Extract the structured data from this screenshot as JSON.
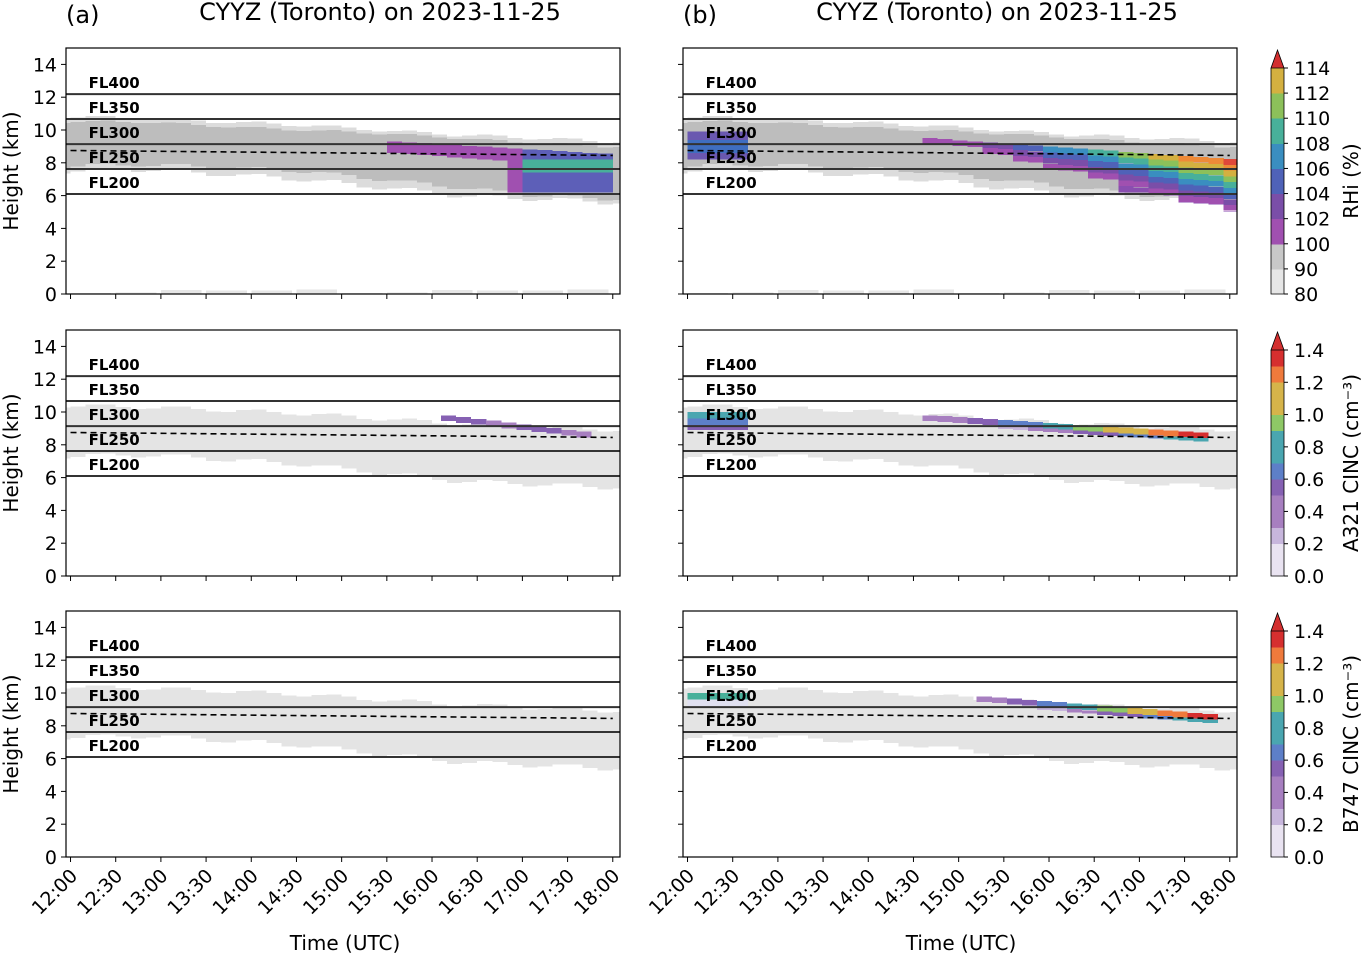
{
  "figure": {
    "panel_tags": [
      "(a)",
      "(b)"
    ],
    "panel_title": "CYYZ (Toronto) on 2023-11-25",
    "xlabel": "Time (UTC)",
    "ylabel": "Height (km)"
  },
  "chart_data": {
    "type": "heatmap",
    "x_ticks": [
      "12:00",
      "12:30",
      "13:00",
      "13:30",
      "14:00",
      "14:30",
      "15:00",
      "15:30",
      "16:00",
      "16:30",
      "17:00",
      "17:30",
      "18:00"
    ],
    "y_ticks": [
      0,
      2,
      4,
      6,
      8,
      10,
      12,
      14
    ],
    "ylim": [
      0,
      15
    ],
    "time_range_hours": [
      11.95,
      18.08
    ],
    "flight_levels": [
      {
        "label": "FL400",
        "height_km": 12.19
      },
      {
        "label": "FL350",
        "height_km": 10.67
      },
      {
        "label": "FL300",
        "height_km": 9.14
      },
      {
        "label": "FL250",
        "height_km": 7.62
      },
      {
        "label": "FL200",
        "height_km": 6.1
      }
    ],
    "tropopause_dashed": {
      "time": [
        12.0,
        18.0
      ],
      "height_km": [
        8.75,
        8.45
      ]
    },
    "colorbars": [
      {
        "label": "RHi (%)",
        "ticks": [
          "80",
          "90",
          "100",
          "102",
          "104",
          "106",
          "108",
          "110",
          "112",
          "114"
        ],
        "extend": "max"
      },
      {
        "label": "A321 CINC (cm⁻³)",
        "ticks": [
          "0.0",
          "0.2",
          "0.4",
          "0.6",
          "0.8",
          "1.0",
          "1.2",
          "1.4"
        ],
        "extend": "max"
      },
      {
        "label": "B747 CINC (cm⁻³)",
        "ticks": [
          "0.0",
          "0.2",
          "0.4",
          "0.6",
          "0.8",
          "1.0",
          "1.2",
          "1.4"
        ],
        "extend": "max"
      }
    ],
    "rows": [
      {
        "variable": "RHi",
        "gray_regions": [
          {
            "level": "90-100",
            "bottom_km": [
              7.8,
              7.9,
              7.7,
              7.5,
              7.0,
              6.5,
              6.0,
              5.8
            ],
            "top_km": [
              10.5,
              10.5,
              10.2,
              10.0,
              9.8,
              9.5,
              9.2,
              9.0
            ]
          },
          {
            "level": "80-90",
            "bottom_km": [
              7.5,
              7.6,
              7.3,
              7.0,
              6.5,
              6.0,
              5.8,
              5.6
            ],
            "top_km": [
              10.8,
              10.7,
              10.5,
              10.3,
              10.0,
              9.7,
              9.5,
              9.3
            ]
          }
        ],
        "surface_wisps": [
          0.1,
          0.2,
          0.8,
          0.7,
          0.7,
          0.9
        ]
      },
      {
        "variable": "A321 CINC",
        "contrail_band": "along tropopause 15:00-17:40"
      },
      {
        "variable": "B747 CINC",
        "contrail_band": "along tropopause 15:30-17:40"
      }
    ]
  }
}
